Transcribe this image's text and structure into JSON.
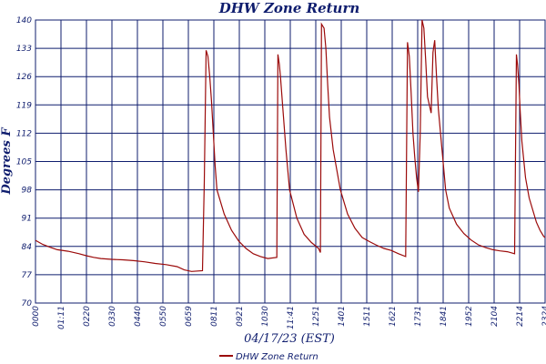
{
  "chart_data": {
    "type": "line",
    "title": "DHW Zone Return",
    "xlabel": "04/17/23 (EST)",
    "ylabel": "Degrees F",
    "ylim": [
      70,
      140
    ],
    "yticks": [
      70,
      77,
      84,
      91,
      98,
      105,
      112,
      119,
      126,
      133,
      140
    ],
    "xlim": [
      "00:00",
      "23:24"
    ],
    "xticks": [
      "0000",
      "01:11",
      "0220",
      "0330",
      "0440",
      "0550",
      "0659",
      "0811",
      "0921",
      "1030",
      "11:41",
      "1251",
      "1401",
      "1511",
      "1621",
      "1731",
      "1841",
      "1952",
      "2104",
      "2214",
      "2324"
    ],
    "grid": true,
    "legend": {
      "position": "bottom-center",
      "entries": [
        "DHW Zone Return"
      ]
    },
    "colors": {
      "series": "#9b0a0a",
      "grid": "#0f1d6e",
      "text": "#0f1d6e"
    },
    "series": [
      {
        "name": "DHW Zone Return",
        "x": [
          "00:00",
          "00:20",
          "00:40",
          "01:00",
          "01:30",
          "02:00",
          "02:20",
          "02:40",
          "03:00",
          "03:30",
          "04:00",
          "04:30",
          "05:00",
          "05:30",
          "06:00",
          "06:30",
          "06:50",
          "07:10",
          "07:40",
          "07:45",
          "07:50",
          "07:55",
          "08:00",
          "08:05",
          "08:10",
          "08:15",
          "08:20",
          "08:40",
          "09:00",
          "09:20",
          "09:40",
          "10:00",
          "10:20",
          "10:40",
          "11:05",
          "11:08",
          "11:12",
          "11:15",
          "11:20",
          "11:30",
          "11:40",
          "12:00",
          "12:20",
          "12:40",
          "13:00",
          "13:05",
          "13:08",
          "13:15",
          "13:20",
          "13:25",
          "13:30",
          "13:40",
          "14:00",
          "14:20",
          "14:40",
          "15:00",
          "15:20",
          "15:40",
          "16:00",
          "16:20",
          "16:40",
          "17:00",
          "17:05",
          "17:10",
          "17:15",
          "17:20",
          "17:25",
          "17:30",
          "17:35",
          "17:40",
          "17:45",
          "17:50",
          "17:55",
          "18:00",
          "18:10",
          "18:15",
          "18:20",
          "18:25",
          "18:30",
          "18:40",
          "18:50",
          "19:00",
          "19:20",
          "19:40",
          "20:00",
          "20:20",
          "20:40",
          "21:00",
          "21:20",
          "21:40",
          "22:00",
          "22:05",
          "22:08",
          "22:12",
          "22:15",
          "22:20",
          "22:30",
          "22:40",
          "23:00",
          "23:10",
          "23:20",
          "23:24"
        ],
        "y": [
          85.5,
          84.5,
          83.8,
          83.2,
          82.8,
          82.2,
          81.7,
          81.3,
          81.0,
          80.8,
          80.7,
          80.5,
          80.2,
          79.8,
          79.5,
          79.0,
          78.2,
          77.8,
          78.0,
          100,
          132.5,
          131,
          126,
          120,
          112,
          104,
          98,
          92,
          88,
          85.3,
          83.5,
          82.2,
          81.5,
          81.0,
          81.3,
          131.5,
          129,
          126,
          120,
          108,
          98,
          91,
          87,
          85,
          83.5,
          82.5,
          139,
          138,
          133,
          124,
          116,
          108,
          98,
          92,
          88.5,
          86.2,
          85.2,
          84.3,
          83.5,
          83.0,
          82.2,
          81.5,
          134.5,
          131,
          122,
          112,
          106,
          101,
          97.5,
          112,
          140,
          138,
          130,
          121,
          117,
          132,
          135,
          126,
          118,
          108,
          98,
          93.5,
          89.5,
          87.2,
          85.6,
          84.4,
          83.7,
          83.2,
          82.9,
          82.7,
          82.2,
          131.5,
          129,
          124,
          118,
          110,
          101,
          96,
          90,
          88,
          86.5,
          86.2
        ]
      }
    ]
  }
}
